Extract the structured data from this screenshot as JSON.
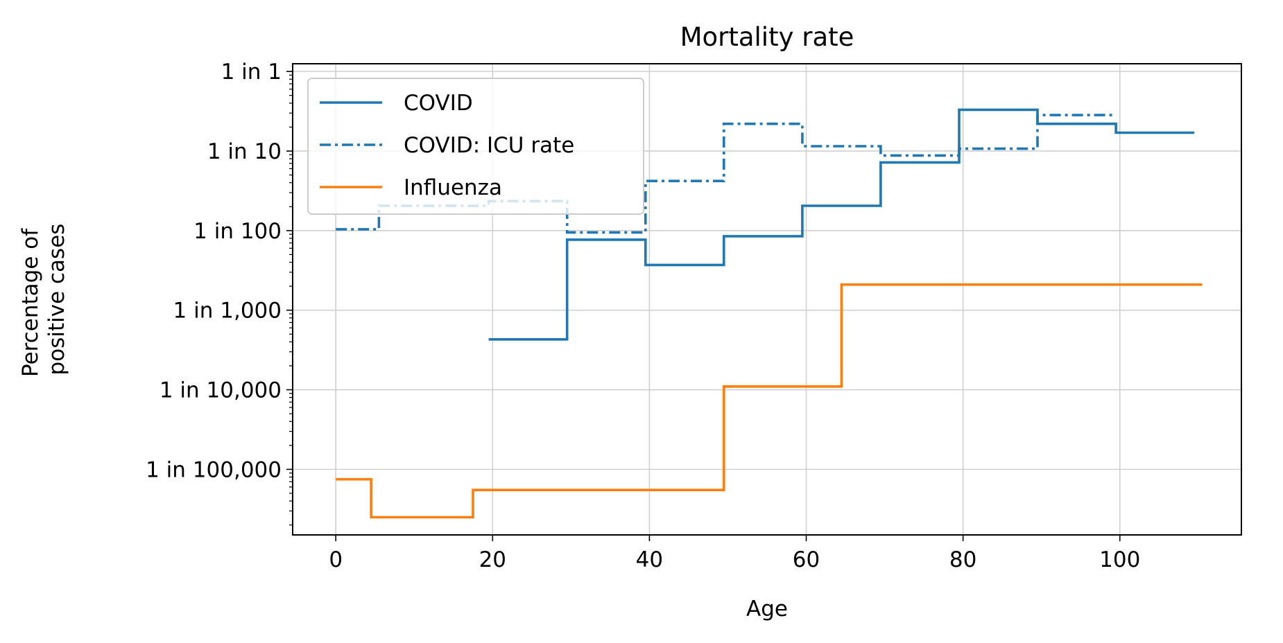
{
  "chart_data": {
    "type": "line",
    "title": "Mortality rate",
    "xlabel": "Age",
    "ylabel": [
      "Percentage of",
      "positive cases"
    ],
    "xlim": [
      -5.5,
      115.5
    ],
    "xticks": [
      0,
      20,
      40,
      60,
      80,
      100
    ],
    "xtick_labels": [
      "0",
      "20",
      "40",
      "60",
      "80",
      "100"
    ],
    "yscale": "log",
    "ylim": [
      1.5e-06,
      1.25
    ],
    "yticks": [
      1,
      0.1,
      0.01,
      0.001,
      0.0001,
      1e-05
    ],
    "ytick_labels": [
      "1 in 1",
      "1 in 10",
      "1 in 100",
      "1 in 1,000",
      "1 in 10,000",
      "1 in 100,000"
    ],
    "grid": true,
    "legend_position": "upper-left",
    "series": [
      {
        "name": "COVID",
        "color": "#1f77b4",
        "style": "solid",
        "x": [
          19.5,
          29.5,
          29.5,
          39.5,
          39.5,
          49.5,
          49.5,
          59.5,
          59.5,
          69.5,
          69.5,
          79.5,
          79.5,
          89.5,
          89.5,
          99.5,
          99.5,
          109.5
        ],
        "y": [
          0.00043,
          0.00043,
          0.0077,
          0.0077,
          0.0037,
          0.0037,
          0.0085,
          0.0085,
          0.0205,
          0.0205,
          0.072,
          0.072,
          0.33,
          0.33,
          0.22,
          0.22,
          0.17,
          0.17
        ]
      },
      {
        "name": "COVID: ICU rate",
        "color": "#1f77b4",
        "style": "dashdot",
        "x": [
          0,
          5.5,
          5.5,
          19.5,
          19.5,
          29.5,
          29.5,
          39.5,
          39.5,
          49.5,
          49.5,
          59.5,
          59.5,
          69.5,
          69.5,
          79.5,
          79.5,
          89.5,
          89.5,
          99.5
        ],
        "y": [
          0.0104,
          0.0104,
          0.0205,
          0.0205,
          0.0235,
          0.0235,
          0.0095,
          0.0095,
          0.042,
          0.042,
          0.22,
          0.22,
          0.115,
          0.115,
          0.088,
          0.088,
          0.107,
          0.107,
          0.283,
          0.283
        ]
      },
      {
        "name": "Influenza",
        "color": "#ff7f0e",
        "style": "solid",
        "x": [
          0,
          4.5,
          4.5,
          17.5,
          17.5,
          49.5,
          49.5,
          64.5,
          64.5,
          110.5
        ],
        "y": [
          7.5e-06,
          7.5e-06,
          2.5e-06,
          2.5e-06,
          5.5e-06,
          5.5e-06,
          0.00011,
          0.00011,
          0.0021,
          0.0021
        ]
      }
    ]
  }
}
